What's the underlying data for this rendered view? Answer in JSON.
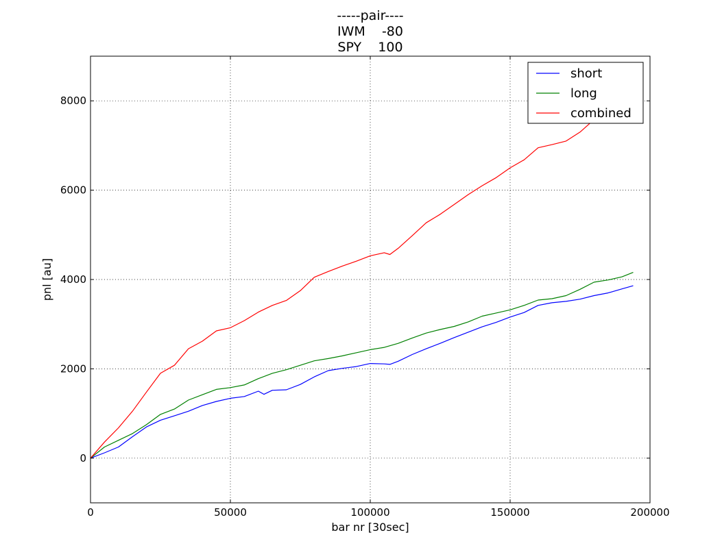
{
  "chart_data": {
    "type": "line",
    "title_lines": [
      "-----pair----",
      "IWM    -80",
      "SPY    100"
    ],
    "xlabel": "bar nr [30sec]",
    "ylabel": "pnl [au]",
    "xlim": [
      0,
      200000
    ],
    "ylim": [
      -1000,
      9000
    ],
    "xticks": [
      0,
      50000,
      100000,
      150000,
      200000
    ],
    "yticks": [
      0,
      2000,
      4000,
      6000,
      8000
    ],
    "grid": true,
    "legend_position": "top-right",
    "series": [
      {
        "name": "short",
        "color": "#0000ff",
        "x": [
          0,
          5000,
          10000,
          15000,
          20000,
          25000,
          30000,
          35000,
          40000,
          45000,
          50000,
          55000,
          60000,
          62000,
          65000,
          70000,
          75000,
          80000,
          85000,
          90000,
          95000,
          100000,
          105000,
          107000,
          110000,
          115000,
          120000,
          125000,
          130000,
          135000,
          140000,
          145000,
          150000,
          155000,
          160000,
          165000,
          170000,
          175000,
          180000,
          185000,
          190000,
          194000
        ],
        "y": [
          0,
          120,
          250,
          480,
          700,
          850,
          950,
          1050,
          1180,
          1270,
          1340,
          1380,
          1500,
          1430,
          1520,
          1530,
          1650,
          1820,
          1960,
          2010,
          2050,
          2120,
          2110,
          2100,
          2170,
          2320,
          2450,
          2570,
          2700,
          2820,
          2940,
          3040,
          3160,
          3260,
          3420,
          3480,
          3510,
          3560,
          3640,
          3700,
          3790,
          3860
        ]
      },
      {
        "name": "long",
        "color": "#008000",
        "x": [
          0,
          5000,
          10000,
          15000,
          20000,
          25000,
          30000,
          35000,
          40000,
          45000,
          50000,
          55000,
          60000,
          65000,
          70000,
          75000,
          80000,
          85000,
          90000,
          95000,
          100000,
          105000,
          110000,
          115000,
          120000,
          125000,
          130000,
          135000,
          140000,
          145000,
          150000,
          155000,
          160000,
          165000,
          170000,
          175000,
          180000,
          185000,
          190000,
          194000
        ],
        "y": [
          0,
          250,
          400,
          550,
          750,
          980,
          1100,
          1300,
          1420,
          1540,
          1580,
          1640,
          1780,
          1900,
          1980,
          2080,
          2180,
          2230,
          2290,
          2360,
          2430,
          2480,
          2570,
          2690,
          2800,
          2880,
          2950,
          3050,
          3180,
          3250,
          3320,
          3420,
          3540,
          3570,
          3640,
          3780,
          3940,
          3990,
          4060,
          4160
        ]
      },
      {
        "name": "combined",
        "color": "#ff0000",
        "x": [
          0,
          5000,
          10000,
          15000,
          20000,
          25000,
          30000,
          35000,
          40000,
          45000,
          50000,
          55000,
          60000,
          65000,
          70000,
          75000,
          80000,
          85000,
          90000,
          95000,
          100000,
          105000,
          107000,
          110000,
          115000,
          120000,
          125000,
          130000,
          135000,
          140000,
          145000,
          150000,
          155000,
          160000,
          165000,
          170000,
          175000,
          180000,
          185000,
          190000,
          194000
        ],
        "y": [
          0,
          360,
          680,
          1050,
          1480,
          1900,
          2080,
          2450,
          2620,
          2850,
          2920,
          3080,
          3270,
          3420,
          3530,
          3750,
          4050,
          4180,
          4300,
          4410,
          4530,
          4600,
          4560,
          4700,
          4980,
          5270,
          5460,
          5680,
          5900,
          6100,
          6280,
          6500,
          6680,
          6950,
          7020,
          7100,
          7300,
          7580,
          7900,
          8150,
          8400
        ]
      }
    ]
  }
}
